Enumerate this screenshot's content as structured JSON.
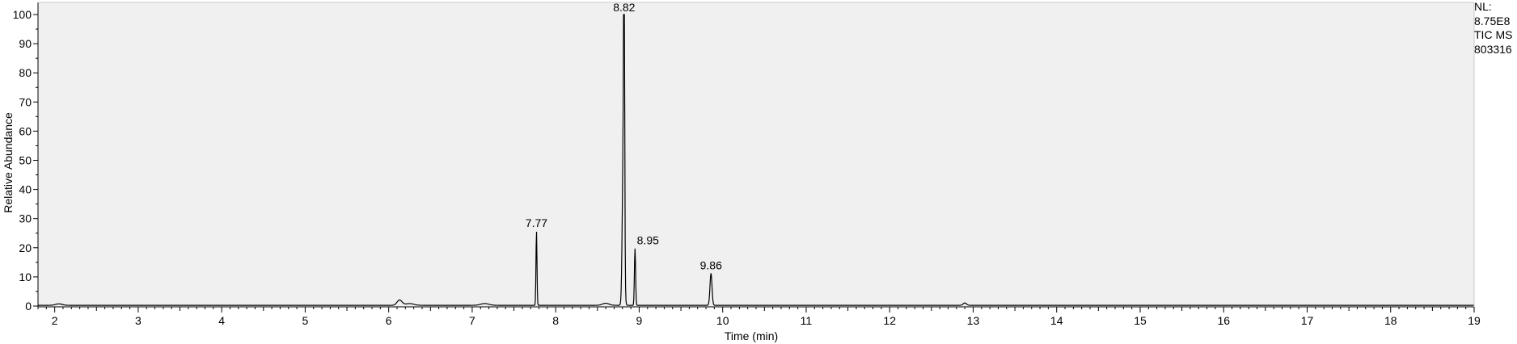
{
  "chart_data": {
    "type": "line",
    "title": "",
    "xlabel": "Time (min)",
    "ylabel": "Relative Abundance",
    "xlim": [
      1.8,
      19.0
    ],
    "ylim": [
      0,
      100
    ],
    "x_ticks": [
      2,
      3,
      4,
      5,
      6,
      7,
      8,
      9,
      10,
      11,
      12,
      13,
      14,
      15,
      16,
      17,
      18,
      19
    ],
    "y_ticks": [
      0,
      10,
      20,
      30,
      40,
      50,
      60,
      70,
      80,
      90,
      100
    ],
    "grid": false,
    "series": [
      {
        "peaks": [
          {
            "rt": 2.05,
            "height": 0.5,
            "width": 0.04
          },
          {
            "rt": 6.13,
            "height": 1.8,
            "width": 0.03
          },
          {
            "rt": 6.25,
            "height": 0.6,
            "width": 0.05
          },
          {
            "rt": 7.15,
            "height": 0.6,
            "width": 0.05
          },
          {
            "rt": 7.77,
            "height": 25.5,
            "width": 0.006
          },
          {
            "rt": 8.6,
            "height": 0.7,
            "width": 0.04
          },
          {
            "rt": 8.81,
            "height": 55.0,
            "width": 0.012
          },
          {
            "rt": 8.82,
            "height": 100.0,
            "width": 0.006
          },
          {
            "rt": 8.95,
            "height": 19.5,
            "width": 0.007
          },
          {
            "rt": 9.86,
            "height": 11.0,
            "width": 0.012
          },
          {
            "rt": 12.9,
            "height": 0.8,
            "width": 0.02
          }
        ]
      }
    ],
    "peak_labels": [
      {
        "x": 7.77,
        "y": 25.5,
        "text": "7.77"
      },
      {
        "x": 8.82,
        "y": 100.0,
        "text": "8.82"
      },
      {
        "x": 8.95,
        "y": 19.5,
        "text": "8.95"
      },
      {
        "x": 9.86,
        "y": 11.0,
        "text": "9.86"
      }
    ]
  },
  "side_info": [
    "NL:",
    "8.75E8",
    "TIC  MS",
    "803316"
  ],
  "colors": {
    "background": "#f0f0f0",
    "trace": "#000000",
    "axis": "#000000"
  }
}
